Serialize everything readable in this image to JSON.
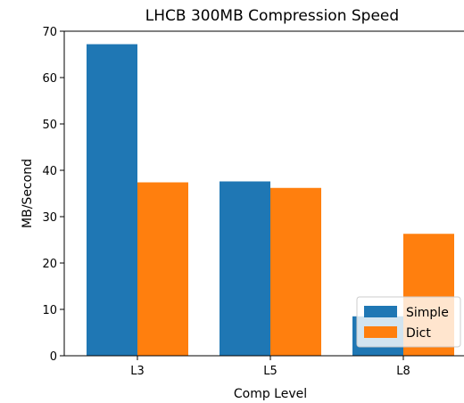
{
  "chart_data": {
    "type": "bar",
    "title": "LHCB 300MB Compression Speed",
    "xlabel": "Comp Level",
    "ylabel": "MB/Second",
    "categories": [
      "L3",
      "L5",
      "L8"
    ],
    "series": [
      {
        "name": "Simple",
        "values": [
          67.2,
          37.6,
          8.5
        ],
        "color": "#1f77b4"
      },
      {
        "name": "Dict",
        "values": [
          37.4,
          36.2,
          26.3
        ],
        "color": "#ff7f0e"
      }
    ],
    "ylim": [
      0,
      70
    ],
    "yticks": [
      0,
      10,
      20,
      30,
      40,
      50,
      60,
      70
    ],
    "grid": false,
    "legend_position": "lower-right"
  }
}
